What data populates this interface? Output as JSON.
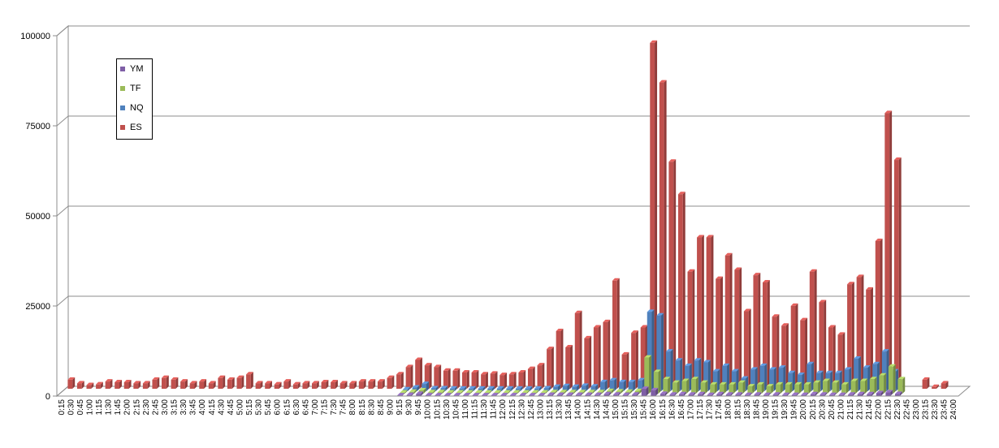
{
  "chart_data": {
    "type": "bar",
    "subtype": "3d-clustered-column",
    "ylim": [
      0,
      100000
    ],
    "yticks": [
      "0",
      "25000",
      "50000",
      "75000",
      "100000"
    ],
    "grid": true,
    "legend_placement": "top-left",
    "legend": [
      "YM",
      "TF",
      "NQ",
      "ES"
    ],
    "categories": [
      "0:15",
      "0:30",
      "0:45",
      "1:00",
      "1:15",
      "1:30",
      "1:45",
      "2:00",
      "2:15",
      "2:30",
      "2:45",
      "3:00",
      "3:15",
      "3:30",
      "3:45",
      "4:00",
      "4:15",
      "4:30",
      "4:45",
      "5:00",
      "5:15",
      "5:30",
      "5:45",
      "6:00",
      "6:15",
      "6:30",
      "6:45",
      "7:00",
      "7:15",
      "7:30",
      "7:45",
      "8:00",
      "8:15",
      "8:30",
      "8:45",
      "9:00",
      "9:15",
      "9:30",
      "9:45",
      "10:00",
      "10:15",
      "10:30",
      "10:45",
      "11:00",
      "11:15",
      "11:30",
      "11:45",
      "12:00",
      "12:15",
      "12:30",
      "12:45",
      "13:00",
      "13:15",
      "13:30",
      "13:45",
      "14:00",
      "14:15",
      "14:30",
      "14:45",
      "15:00",
      "15:15",
      "15:30",
      "15:45",
      "16:00",
      "16:15",
      "16:30",
      "16:45",
      "17:00",
      "17:15",
      "17:30",
      "17:45",
      "18:00",
      "18:15",
      "18:30",
      "18:45",
      "19:00",
      "19:15",
      "19:30",
      "19:45",
      "20:00",
      "20:15",
      "20:30",
      "20:45",
      "21:00",
      "21:15",
      "21:30",
      "21:45",
      "22:00",
      "22:15",
      "22:30",
      "22:45",
      "23:00",
      "23:15",
      "23:30",
      "23:45",
      "24:00"
    ],
    "series": [
      {
        "name": "YM",
        "color": "#7f5fa6",
        "values": [
          0,
          0,
          0,
          0,
          0,
          0,
          0,
          0,
          0,
          0,
          0,
          0,
          0,
          0,
          0,
          0,
          0,
          0,
          0,
          0,
          0,
          0,
          0,
          0,
          0,
          0,
          0,
          0,
          0,
          0,
          0,
          0,
          0,
          0,
          0,
          0,
          200,
          300,
          600,
          200,
          200,
          200,
          200,
          200,
          200,
          200,
          200,
          200,
          200,
          200,
          200,
          200,
          300,
          300,
          300,
          300,
          300,
          300,
          500,
          400,
          300,
          400,
          2000,
          1600,
          600,
          400,
          500,
          400,
          500,
          300,
          500,
          400,
          400,
          300,
          400,
          300,
          400,
          300,
          300,
          300,
          500,
          400,
          300,
          300,
          400,
          500,
          500,
          800,
          1000,
          600,
          0,
          0,
          0,
          0,
          0,
          0
        ]
      },
      {
        "name": "TF",
        "color": "#9bbb59",
        "values": [
          0,
          0,
          0,
          0,
          0,
          0,
          0,
          0,
          0,
          0,
          0,
          0,
          0,
          0,
          0,
          0,
          0,
          0,
          0,
          0,
          0,
          0,
          0,
          0,
          0,
          0,
          0,
          0,
          0,
          0,
          0,
          0,
          0,
          0,
          0,
          0,
          300,
          500,
          900,
          400,
          400,
          300,
          300,
          300,
          300,
          300,
          300,
          300,
          300,
          300,
          300,
          300,
          400,
          400,
          400,
          400,
          400,
          400,
          700,
          600,
          500,
          700,
          10000,
          6000,
          4000,
          3000,
          3500,
          4000,
          3000,
          2500,
          2500,
          2500,
          3000,
          2000,
          2500,
          2000,
          2500,
          2500,
          2500,
          2500,
          3000,
          3500,
          3000,
          2500,
          3500,
          3500,
          4000,
          5000,
          7500,
          4000,
          0,
          0,
          0,
          0,
          0,
          0
        ]
      },
      {
        "name": "NQ",
        "color": "#4f81bd",
        "values": [
          0,
          0,
          0,
          0,
          0,
          0,
          0,
          0,
          0,
          0,
          0,
          0,
          0,
          0,
          0,
          0,
          0,
          0,
          0,
          0,
          0,
          0,
          0,
          0,
          0,
          0,
          0,
          0,
          0,
          0,
          0,
          0,
          0,
          0,
          0,
          0,
          500,
          1000,
          2000,
          800,
          800,
          700,
          700,
          700,
          700,
          700,
          700,
          700,
          700,
          700,
          700,
          800,
          1200,
          1400,
          1200,
          1500,
          1300,
          2500,
          3000,
          2500,
          2500,
          3000,
          22000,
          21000,
          11000,
          8500,
          7000,
          8500,
          8000,
          5500,
          7000,
          5500,
          3500,
          6000,
          7000,
          6000,
          6500,
          5000,
          4500,
          7500,
          5000,
          5000,
          5000,
          6000,
          9000,
          6500,
          7500,
          11000,
          5500,
          0,
          0,
          0,
          0,
          0,
          0,
          0
        ]
      },
      {
        "name": "ES",
        "color": "#c0504d",
        "values": [
          2500,
          1500,
          1000,
          1200,
          2000,
          1800,
          1800,
          1500,
          1500,
          2500,
          3000,
          2500,
          2000,
          1500,
          2000,
          1500,
          3000,
          2500,
          3000,
          4000,
          1500,
          1500,
          1200,
          2000,
          1200,
          1500,
          1500,
          1800,
          1800,
          1500,
          1500,
          2000,
          2000,
          2000,
          3000,
          4000,
          6000,
          8000,
          6500,
          6000,
          5000,
          5000,
          4500,
          4500,
          4000,
          4200,
          3800,
          4000,
          4500,
          5500,
          6500,
          11000,
          16000,
          11500,
          21000,
          14000,
          17000,
          18500,
          30000,
          9500,
          15500,
          17000,
          96000,
          85000,
          63000,
          54000,
          32500,
          42000,
          42000,
          30500,
          37000,
          33000,
          21500,
          31500,
          29500,
          20000,
          17500,
          23000,
          19000,
          32500,
          24000,
          17000,
          15000,
          29000,
          31000,
          27500,
          41000,
          76500,
          63500,
          0,
          0,
          2500,
          500,
          1500,
          0,
          0
        ]
      }
    ]
  }
}
